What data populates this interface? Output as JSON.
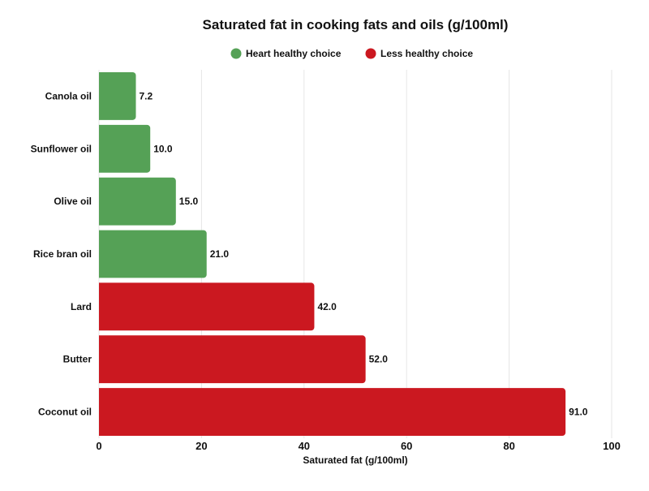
{
  "chart_data": {
    "type": "bar",
    "orientation": "horizontal",
    "title": "Saturated fat in cooking fats and oils (g/100ml)",
    "xlabel": "Saturated fat (g/100ml)",
    "ylabel": "",
    "xlim": [
      0,
      100
    ],
    "xticks": [
      0,
      20,
      40,
      60,
      80,
      100
    ],
    "grid": true,
    "legend_position": "top-center",
    "legend": [
      {
        "name": "Heart healthy choice",
        "color": "#55a156"
      },
      {
        "name": "Less healthy choice",
        "color": "#cb1820"
      }
    ],
    "categories": [
      "Canola oil",
      "Sunflower oil",
      "Olive oil",
      "Rice bran oil",
      "Lard",
      "Butter",
      "Coconut oil"
    ],
    "values": [
      7.2,
      10.0,
      15.0,
      21.0,
      42.0,
      52.0,
      91.0
    ],
    "labels": [
      "7.2",
      "10.0",
      "15.0",
      "21.0",
      "42.0",
      "52.0",
      "91.0"
    ],
    "groups": [
      "Heart healthy choice",
      "Heart healthy choice",
      "Heart healthy choice",
      "Heart healthy choice",
      "Less healthy choice",
      "Less healthy choice",
      "Less healthy choice"
    ]
  }
}
